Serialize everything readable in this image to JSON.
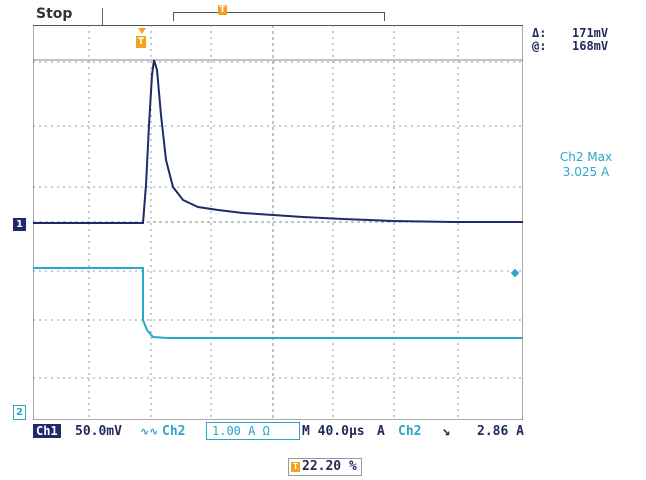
{
  "status": "Stop",
  "cursor_readouts": {
    "delta_label": "Δ:",
    "delta_value": "171mV",
    "at_label": "@:",
    "at_value": "168mV"
  },
  "measurement": {
    "label": "Ch2 Max",
    "value": "3.025 A"
  },
  "channel_markers": {
    "ch1": "1",
    "ch2": "2"
  },
  "bottom": {
    "ch1_label": "Ch1",
    "ch1_scale": "50.0mV",
    "ch1_bw_icon": "bandwidth-limit-icon",
    "ch2_label": "Ch2",
    "ch2_scale": "1.00 A Ω",
    "timebase": "M 40.0µs",
    "trigger_label": "A",
    "trigger_source": "Ch2",
    "trigger_slope_icon": "falling-edge-icon",
    "trigger_level": "2.86 A"
  },
  "trigger_position_pct": "22.20 %",
  "colors": {
    "ch1": "#1f2a6a",
    "ch2": "#2aa6c8",
    "trigger": "#f4a21e",
    "grid": "#9a9a9a"
  }
}
